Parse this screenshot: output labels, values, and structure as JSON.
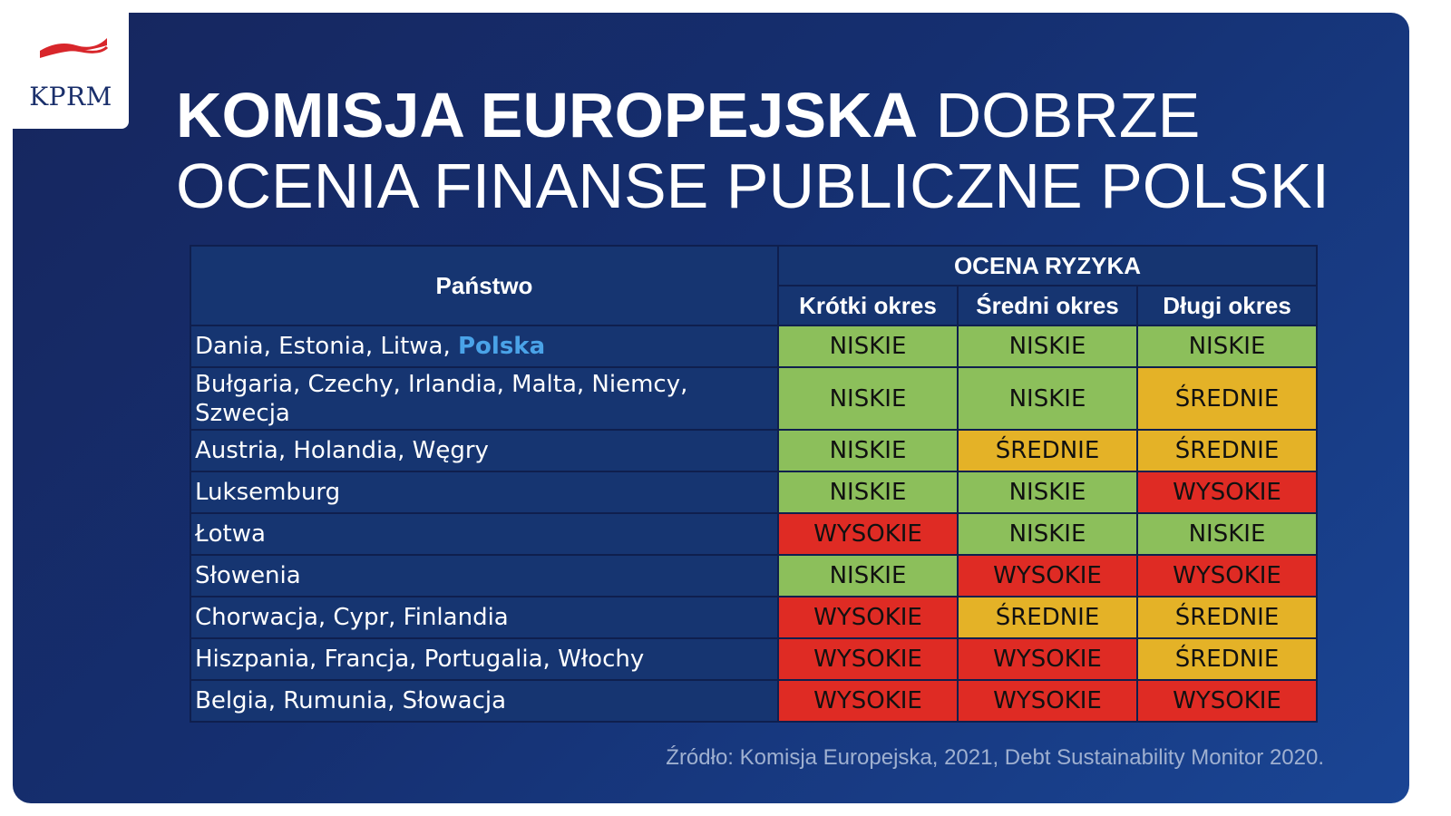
{
  "logo": {
    "text": "KPRM",
    "icon": "polish-flag-icon"
  },
  "title": {
    "bold": "KOMISJA EUROPEJSKA",
    "rest": "DOBRZE OCENIA FINANSE PUBLICZNE POLSKI"
  },
  "table": {
    "country_header": "Państwo",
    "risk_header": "OCENA RYZYKA",
    "periods": [
      "Krótki okres",
      "Średni okres",
      "Długi okres"
    ],
    "rows": [
      {
        "country": "Dania, Estonia, Litwa, ",
        "highlight": "Polska",
        "risks": [
          "NISKIE",
          "NISKIE",
          "NISKIE"
        ]
      },
      {
        "country": "Bułgaria, Czechy, Irlandia, Malta, Niemcy, Szwecja",
        "highlight": "",
        "risks": [
          "NISKIE",
          "NISKIE",
          "ŚREDNIE"
        ]
      },
      {
        "country": "Austria, Holandia, Węgry",
        "highlight": "",
        "risks": [
          "NISKIE",
          "ŚREDNIE",
          "ŚREDNIE"
        ]
      },
      {
        "country": "Luksemburg",
        "highlight": "",
        "risks": [
          "NISKIE",
          "NISKIE",
          "WYSOKIE"
        ]
      },
      {
        "country": "Łotwa",
        "highlight": "",
        "risks": [
          "WYSOKIE",
          "NISKIE",
          "NISKIE"
        ]
      },
      {
        "country": "Słowenia",
        "highlight": "",
        "risks": [
          "NISKIE",
          "WYSOKIE",
          "WYSOKIE"
        ]
      },
      {
        "country": "Chorwacja, Cypr, Finlandia",
        "highlight": "",
        "risks": [
          "WYSOKIE",
          "ŚREDNIE",
          "ŚREDNIE"
        ]
      },
      {
        "country": "Hiszpania, Francja, Portugalia, Włochy",
        "highlight": "",
        "risks": [
          "WYSOKIE",
          "WYSOKIE",
          "ŚREDNIE"
        ]
      },
      {
        "country": "Belgia, Rumunia, Słowacja",
        "highlight": "",
        "risks": [
          "WYSOKIE",
          "WYSOKIE",
          "WYSOKIE"
        ]
      }
    ],
    "colors": {
      "NISKIE": "#8cbf5b",
      "ŚREDNIE": "#e4b227",
      "WYSOKIE": "#df2b24",
      "highlight": "#4aa3e8"
    }
  },
  "source": "Źródło: Komisja Europejska, 2021, Debt Sustainability Monitor 2020."
}
